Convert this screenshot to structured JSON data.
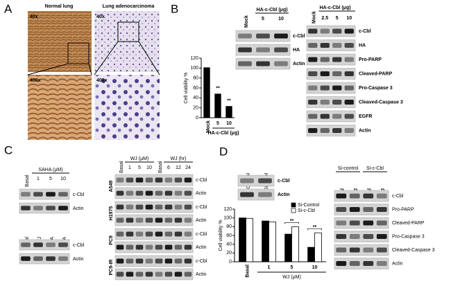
{
  "panel_a": {
    "label": "A",
    "columns": [
      "Normal lung",
      "Lung adenocarcinoma"
    ],
    "magnifications": [
      "40x",
      "40x",
      "400x",
      "400x"
    ]
  },
  "panel_b": {
    "label": "B",
    "blot_top": {
      "lanes": [
        "Mock",
        "5",
        "10"
      ],
      "group": "HA-c-Cbl (μg)",
      "rows": [
        "c-Cbl",
        "HA",
        "Actin"
      ]
    },
    "blot_right": {
      "lanes": [
        "Mock",
        "2.5",
        "5",
        "10"
      ],
      "group": "HA-c-Cbl (μg)",
      "rows": [
        "c-Cbl",
        "HA",
        "Pro-PARP",
        "Cleaved-PARP",
        "Pro-Caspase 3",
        "Cleaved-Caspase 3",
        "EGFR",
        "Actin"
      ]
    }
  },
  "panel_c": {
    "label": "C",
    "blot_saha": {
      "lanes": [
        "Basal",
        "1",
        "5",
        "10"
      ],
      "group": "SAHA (μM)",
      "rows": [
        "c-Cbl",
        "Actin"
      ]
    },
    "blot_hdac": {
      "lanes": [
        "Basal",
        "WJ",
        "SAHA",
        "TSA"
      ],
      "rows": [
        "c-Cbl",
        "Actin"
      ]
    },
    "blot_wj": {
      "lanes": [
        "Basal",
        "1",
        "5",
        "10",
        "Basal",
        "6",
        "12",
        "24"
      ],
      "groups": [
        "WJ (μM)",
        "WJ (hr)"
      ],
      "cell_lines": [
        "A549",
        "H1975",
        "PC9",
        "PC9-IR"
      ],
      "rows": [
        "c-Cbl",
        "Actin"
      ]
    }
  },
  "panel_d": {
    "label": "D",
    "blot_si": {
      "lanes": [
        "Si-Control",
        "Si-c-Cbl"
      ],
      "rows": [
        "c-Cbl",
        "Actin"
      ]
    },
    "blot_right": {
      "groups": [
        "Si-control",
        "Si-c-Cbl"
      ],
      "lanes": [
        "Basal",
        "WJ",
        "Basal",
        "WJ"
      ],
      "rows": [
        "c-Cbl",
        "Pro-PARP",
        "Cleaved-PARP",
        "Pro-Caspase 3",
        "Cleaved-Caspase 3",
        "Actin"
      ]
    }
  },
  "chart_data": [
    {
      "type": "bar",
      "y_label": "Cell viability %",
      "x_label": "HA-c-Cbl (μg)",
      "categories": [
        "Mock",
        "5",
        "10"
      ],
      "values": [
        101,
        48,
        23
      ],
      "color": "#000000",
      "ylim": [
        0,
        120
      ],
      "yticks": [
        0,
        20,
        40,
        60,
        80,
        100,
        120
      ],
      "annotations": [
        "**",
        "**"
      ]
    },
    {
      "type": "grouped_bar",
      "y_label": "Cell viability %",
      "x_label": "WJ (μM)",
      "categories": [
        "Basal",
        "1",
        "5",
        "10"
      ],
      "series": [
        {
          "name": "Si-Control",
          "color": "#000000",
          "values": [
            100,
            93,
            63,
            33
          ]
        },
        {
          "name": "Si-c-Cbl",
          "color": "#ffffff",
          "values": [
            99,
            91,
            80,
            66
          ]
        }
      ],
      "ylim": [
        0,
        120
      ],
      "yticks": [
        0,
        20,
        40,
        60,
        80,
        100,
        120
      ],
      "annotations": [
        "**",
        "**"
      ],
      "legend": "top-right"
    }
  ]
}
